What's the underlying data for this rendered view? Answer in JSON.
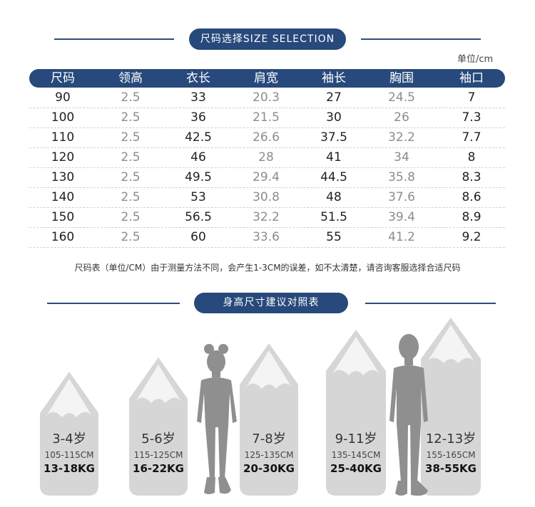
{
  "size_section": {
    "title": "尺码选择SIZE SELECTION",
    "unit": "单位/cm",
    "headers": [
      "尺码",
      "领高",
      "衣长",
      "肩宽",
      "袖长",
      "胸围",
      "袖口"
    ],
    "rows": [
      [
        "90",
        "2.5",
        "33",
        "20.3",
        "27",
        "24.5",
        "7"
      ],
      [
        "100",
        "2.5",
        "36",
        "21.5",
        "30",
        "26",
        "7.3"
      ],
      [
        "110",
        "2.5",
        "42.5",
        "26.6",
        "37.5",
        "32.2",
        "7.7"
      ],
      [
        "120",
        "2.5",
        "46",
        "28",
        "41",
        "34",
        "8"
      ],
      [
        "130",
        "2.5",
        "49.5",
        "29.4",
        "44.5",
        "35.8",
        "8.3"
      ],
      [
        "140",
        "2.5",
        "53",
        "30.8",
        "48",
        "37.6",
        "8.6"
      ],
      [
        "150",
        "2.5",
        "56.5",
        "32.2",
        "51.5",
        "39.4",
        "8.9"
      ],
      [
        "160",
        "2.5",
        "60",
        "33.6",
        "55",
        "41.2",
        "9.2"
      ]
    ],
    "note": "尺码表（单位/CM）由于测量方法不同，会产生1-3CM的误差，如不太清楚，请咨询客服选择合适尺码"
  },
  "height_section": {
    "title": "身高尺寸建议对照表",
    "groups": [
      {
        "age": "3-4岁",
        "range": "105-115CM",
        "weight": "13-18KG"
      },
      {
        "age": "5-6岁",
        "range": "115-125CM",
        "weight": "16-22KG"
      },
      {
        "age": "7-8岁",
        "range": "125-135CM",
        "weight": "20-30KG"
      },
      {
        "age": "9-11岁",
        "range": "135-145CM",
        "weight": "25-40KG"
      },
      {
        "age": "12-13岁",
        "range": "155-165CM",
        "weight": "38-55KG"
      }
    ]
  },
  "colors": {
    "accent": "#27497b",
    "pencil_body": "#d6d6d6",
    "pencil_light": "#f4f4f4",
    "silhouette": "#8f8f8f"
  }
}
